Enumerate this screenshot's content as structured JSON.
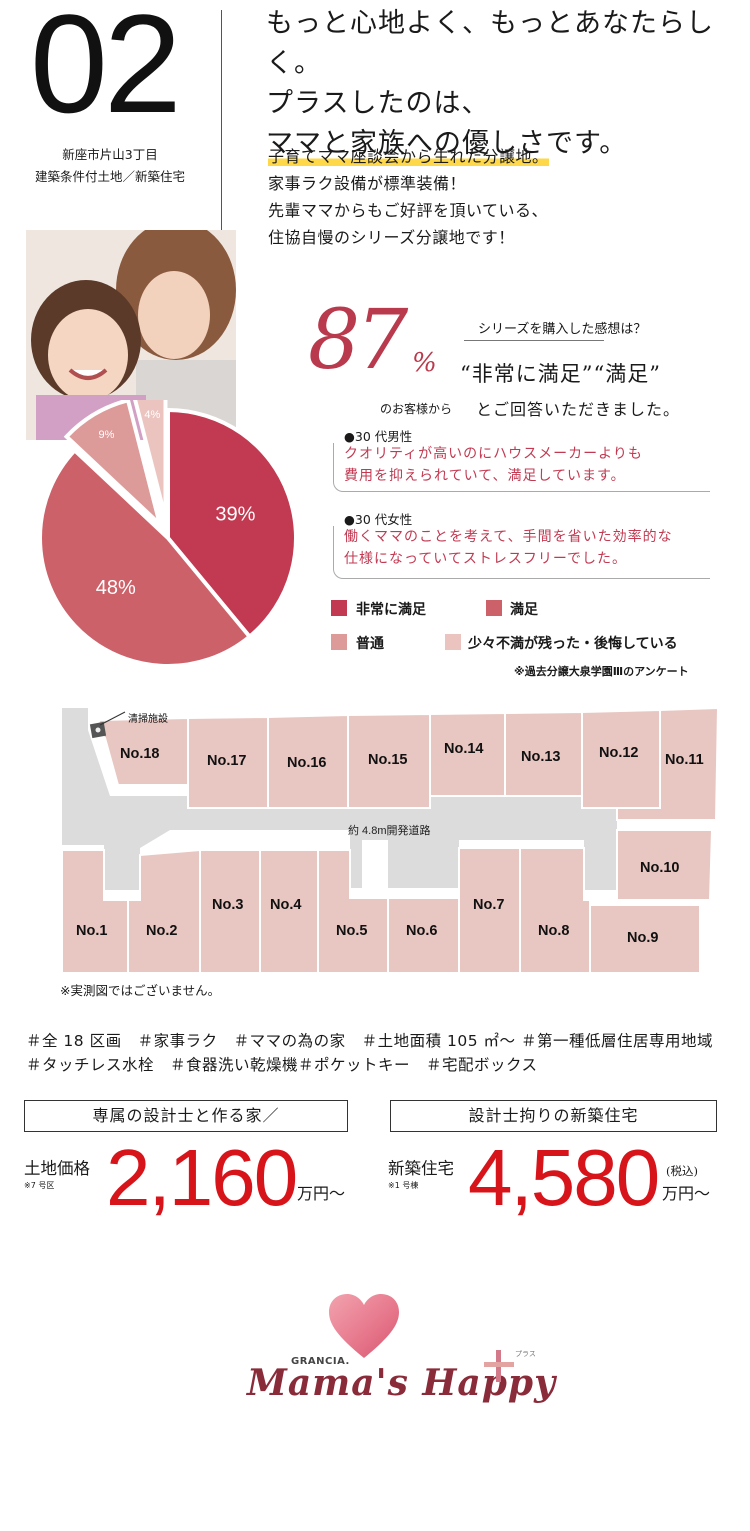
{
  "header": {
    "number": "02",
    "address_lines": [
      "新座市片山3丁目",
      "建築条件付土地／新築住宅"
    ],
    "headline": [
      "もっと心地よく、もっとあなたらしく。",
      "プラスしたのは、",
      "ママと家族への優しさです。"
    ],
    "lead_highlight": "子育てママ座談会から生れた分譲地。",
    "lead_lines": [
      "家事ラク設備が標準装備！",
      "先輩ママからもご好評を頂いている、",
      "住協自慢のシリーズ分譲地です！"
    ]
  },
  "survey": {
    "big_number": "87",
    "percent_sign": "%",
    "customers_label": "のお客様から",
    "question": "シリーズを購入した感想は？",
    "answer_line1": "“非常に満足”“満足”",
    "answer_line2": "とご回答いただきました。",
    "voices": [
      {
        "title": "●30 代男性",
        "lines": [
          "クオリティが高いのにハウスメーカーよりも",
          "費用を抑えられていて、満足しています。"
        ]
      },
      {
        "title": "●30 代女性",
        "lines": [
          "働くママのことを考えて、手間を省いた効率的な",
          "仕様になっていてストレスフリーでした。"
        ]
      }
    ],
    "legend": [
      {
        "label": "非常に満足",
        "color": "#c23a52"
      },
      {
        "label": "満足",
        "color": "#cc6169"
      },
      {
        "label": "普通",
        "color": "#dc9a99"
      },
      {
        "label": "少々不満が残った・後悔している",
        "color": "#ebc4c0"
      }
    ],
    "source_note": "※過去分譲大泉学園Ⅲのアンケート"
  },
  "chart_data": {
    "type": "pie",
    "categories": [
      "非常に満足",
      "満足",
      "普通",
      "少々不満が残った・後悔している"
    ],
    "values": [
      39,
      48,
      9,
      4
    ],
    "labels": [
      "39%",
      "48%",
      "9%",
      "4%"
    ],
    "colors": [
      "#c23a52",
      "#cc6169",
      "#dc9a99",
      "#ebc4c0"
    ]
  },
  "map": {
    "facility_label": "清掃施設",
    "road_label": "約 4.8m開発道路",
    "lots": [
      "No.1",
      "No.2",
      "No.3",
      "No.4",
      "No.5",
      "No.6",
      "No.7",
      "No.8",
      "No.9",
      "No.10",
      "No.11",
      "No.12",
      "No.13",
      "No.14",
      "No.15",
      "No.16",
      "No.17",
      "No.18"
    ],
    "note": "※実測図ではございません。"
  },
  "tags": {
    "line1": "＃全 18 区画　＃家事ラク　＃ママの為の家　＃土地面積 105 ㎡～ ＃第一種低層住居専用地域",
    "line2": "＃タッチレス水栓　＃食器洗い乾燥機＃ポケットキー　＃宅配ボックス"
  },
  "prices": [
    {
      "box": "専属の設計士と作る家／",
      "label": "土地価格",
      "sub": "※7 号区",
      "value": "2,160",
      "unit": "万円～",
      "tax": ""
    },
    {
      "box": "設計士拘りの新築住宅",
      "label": "新築住宅",
      "sub": "※1 号棟",
      "value": "4,580",
      "unit": "万円～",
      "tax": "(税込)"
    }
  ],
  "logo": {
    "brand": "GRANCIA.",
    "script": "Mama's Happy",
    "plus_reading": "プラス"
  }
}
